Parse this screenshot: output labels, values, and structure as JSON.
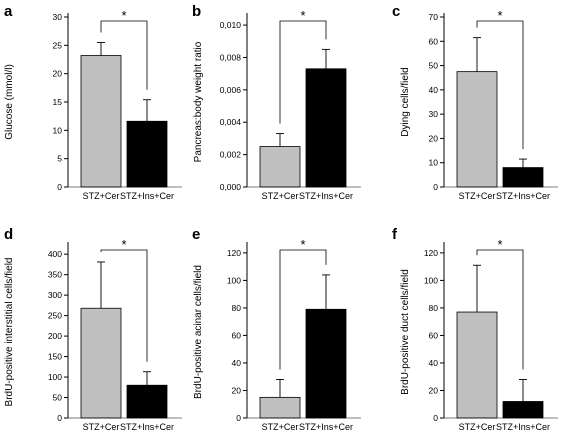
{
  "figure": {
    "categories": [
      "STZ+Cer",
      "STZ+Ins+Cer"
    ],
    "colors": {
      "bar1": "#c0c0c0",
      "bar2": "#000000",
      "axis": "#000000"
    }
  },
  "chart_data": [
    {
      "type": "bar",
      "panel": "a",
      "ylabel": "Glucose (mmol/l)",
      "categories": [
        "STZ+Cer",
        "STZ+Ins+Cer"
      ],
      "values": [
        23.2,
        11.6
      ],
      "errors": [
        2.3,
        3.8
      ],
      "ylim": [
        0,
        30
      ],
      "ticks": [
        0,
        5,
        10,
        15,
        20,
        25,
        30
      ],
      "tick_labels": [
        "0",
        "5",
        "10",
        "15",
        "20",
        "25",
        "30"
      ],
      "significance": "*"
    },
    {
      "type": "bar",
      "panel": "b",
      "ylabel": "Pancreas:body weight ratio",
      "categories": [
        "STZ+Cer",
        "STZ+Ins+Cer"
      ],
      "values": [
        0.0025,
        0.0073
      ],
      "errors": [
        0.0008,
        0.0012
      ],
      "ylim": [
        0,
        0.0105
      ],
      "ticks": [
        0,
        0.002,
        0.004,
        0.006,
        0.008,
        0.01
      ],
      "tick_labels": [
        "0,000",
        "0,002",
        "0,004",
        "0,006",
        "0,008",
        "0,010"
      ],
      "significance": "*"
    },
    {
      "type": "bar",
      "panel": "c",
      "ylabel": "Dying cells/field",
      "categories": [
        "STZ+Cer",
        "STZ+Ins+Cer"
      ],
      "values": [
        47.5,
        8
      ],
      "errors": [
        14,
        3.5
      ],
      "ylim": [
        0,
        70
      ],
      "ticks": [
        0,
        10,
        20,
        30,
        40,
        50,
        60,
        70
      ],
      "tick_labels": [
        "0",
        "10",
        "20",
        "30",
        "40",
        "50",
        "60",
        "70"
      ],
      "significance": "*"
    },
    {
      "type": "bar",
      "panel": "d",
      "ylabel": "BrdU-positive interstitial cells/field",
      "categories": [
        "STZ+Cer",
        "STZ+Ins+Cer"
      ],
      "values": [
        268,
        80
      ],
      "errors": [
        113,
        33
      ],
      "ylim": [
        0,
        420
      ],
      "ticks": [
        0,
        50,
        100,
        150,
        200,
        250,
        300,
        350,
        400
      ],
      "tick_labels": [
        "0",
        "50",
        "100",
        "150",
        "200",
        "250",
        "300",
        "350",
        "400"
      ],
      "significance": "*"
    },
    {
      "type": "bar",
      "panel": "e",
      "ylabel": "BrdU-positive acinar cells/field",
      "categories": [
        "STZ+Cer",
        "STZ+Ins+Cer"
      ],
      "values": [
        15,
        79
      ],
      "errors": [
        13,
        25
      ],
      "ylim": [
        0,
        125
      ],
      "ticks": [
        0,
        20,
        40,
        60,
        80,
        100,
        120
      ],
      "tick_labels": [
        "0",
        "20",
        "40",
        "60",
        "80",
        "100",
        "120"
      ],
      "significance": "*"
    },
    {
      "type": "bar",
      "panel": "f",
      "ylabel": "BrdU-positive duct cells/field",
      "categories": [
        "STZ+Cer",
        "STZ+Ins+Cer"
      ],
      "values": [
        77,
        12
      ],
      "errors": [
        34,
        16
      ],
      "ylim": [
        0,
        125
      ],
      "ticks": [
        0,
        20,
        40,
        60,
        80,
        100,
        120
      ],
      "tick_labels": [
        "0",
        "20",
        "40",
        "60",
        "80",
        "100",
        "120"
      ],
      "significance": "*"
    }
  ]
}
